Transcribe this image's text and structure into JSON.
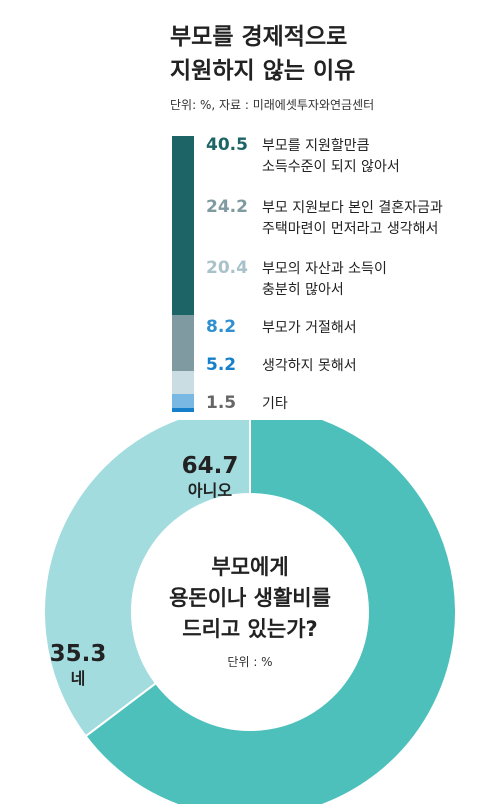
{
  "title_lines": [
    "부모를 경제적으로",
    "지원하지 않는 이유"
  ],
  "unit_source": "단위: %, 자료 : 미래에셋투자와연금센터",
  "chart_data": [
    {
      "type": "bar",
      "stacked": true,
      "orientation": "vertical",
      "title": "부모를 경제적으로 지원하지 않는 이유",
      "unit": "%",
      "source": "미래에셋투자와연금센터",
      "categories": [
        "부모를 지원할만큼 소득수준이 되지 않아서",
        "부모 지원보다 본인 결혼자금과 주택마련이 먼저라고 생각해서",
        "부모의 자산과 소득이 충분히 많아서",
        "부모가 거절해서",
        "생각하지 못해서",
        "기타"
      ],
      "values": [
        40.5,
        24.2,
        20.4,
        8.2,
        5.2,
        1.5
      ],
      "value_labels": [
        "40.5",
        "24.2",
        "20.4",
        "8.2",
        "5.2",
        "1.5"
      ],
      "label_lines": [
        [
          "부모를 지원할만큼",
          "소득수준이 되지 않아서"
        ],
        [
          "부모 지원보다 본인 결혼자금과",
          "주택마련이 먼저라고 생각해서"
        ],
        [
          "부모의 자산과 소득이",
          "충분히 많아서"
        ],
        [
          "부모가 거절해서"
        ],
        [
          "생각하지 못해서"
        ],
        [
          "기타"
        ]
      ],
      "colors": [
        "#1d6466",
        "#1d6466",
        "#7f9aa0",
        "#c9dde2",
        "#79b8e3",
        "#1580c9"
      ],
      "value_colors": [
        "#1d6466",
        "#7f9aa0",
        "#a9c2ca",
        "#2f8fd0",
        "#1580c9",
        "#666666"
      ]
    },
    {
      "type": "pie",
      "donut": true,
      "title": "부모에게 용돈이나 생활비를 드리고 있는가?",
      "title_lines": [
        "부모에게",
        "용돈이나 생활비를",
        "드리고 있는가?"
      ],
      "unit_label": "단위 : %",
      "categories": [
        "아니오",
        "네"
      ],
      "values": [
        64.7,
        35.3
      ],
      "value_labels": [
        "64.7",
        "35.3"
      ],
      "colors": [
        "#4dc0bc",
        "#a2dcdf"
      ]
    }
  ]
}
